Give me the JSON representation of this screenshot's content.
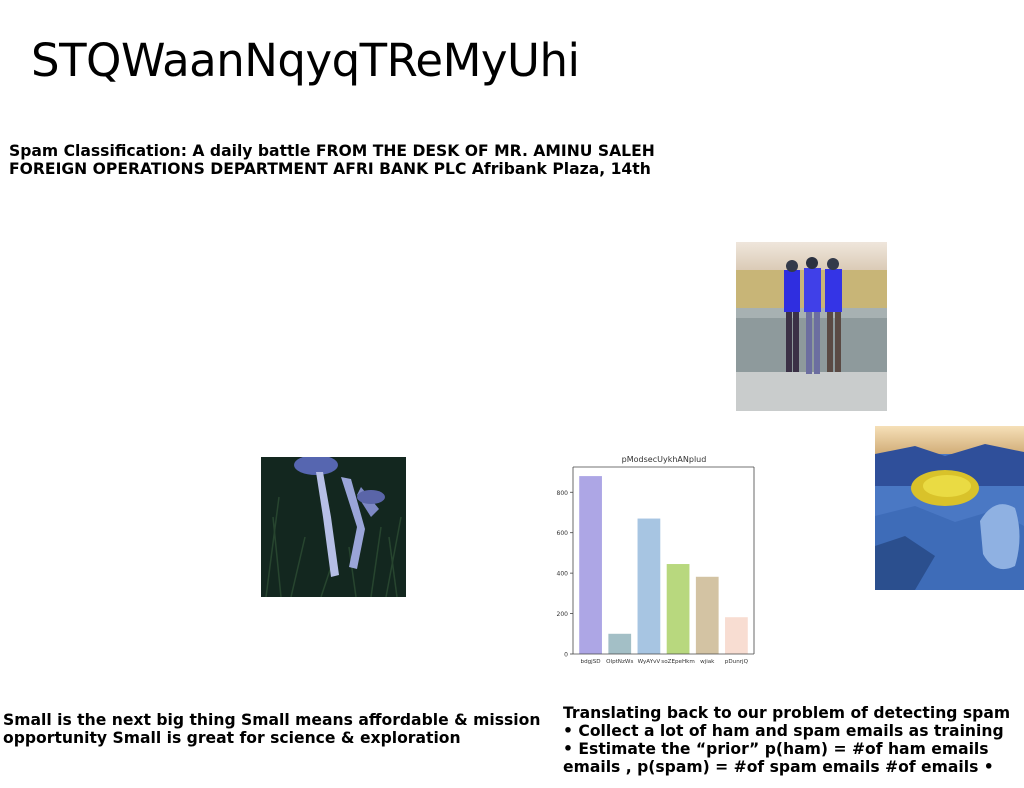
{
  "slide": {
    "title": "STQWaanNqyqTReMyUhi",
    "subtitle": "Spam Classification: A daily battle FROM THE DESK OF MR. AMINU SALEH FOREIGN OPERATIONS DEPARTMENT AFRI BANK PLC Afribank Plaza, 14th",
    "text_left": "Small is the next big thing Small means affordable & mission opportunity Small is great for science & exploration",
    "text_right": "Translating back to our problem of detecting spam\n• Collect a lot of ham and spam emails as training\n• Estimate the “prior” p(ham) = #of ham emails\nemails , p(spam) = #of spam emails #of emails •"
  },
  "images": [
    {
      "name": "photo-three-men-at-wall",
      "subject": "three people in blue shirts standing by a concrete wall"
    },
    {
      "name": "photo-mushrooms-in-grass",
      "subject": "pale mushrooms lying in dark grass"
    },
    {
      "name": "photo-yellow-crater-lake",
      "subject": "rocky crater with a yellow pool"
    }
  ],
  "chart_data": {
    "type": "bar",
    "title": "pModsecUykhANplud",
    "categories": [
      "bdgjSD",
      "OlptNzWs",
      "WyAYvV",
      "soZEpeHkm",
      "wjiak",
      "pDunrjQ"
    ],
    "values": [
      880,
      100,
      670,
      445,
      382,
      182
    ],
    "colors": [
      "#ada6e5",
      "#a3bfc6",
      "#a7c5e2",
      "#b8d87e",
      "#d3c3a3",
      "#f8ddd2"
    ],
    "ylim": [
      0,
      925
    ],
    "yticks": [
      0,
      200,
      400,
      600,
      800
    ],
    "xlabel": "",
    "ylabel": "",
    "grid": false
  }
}
